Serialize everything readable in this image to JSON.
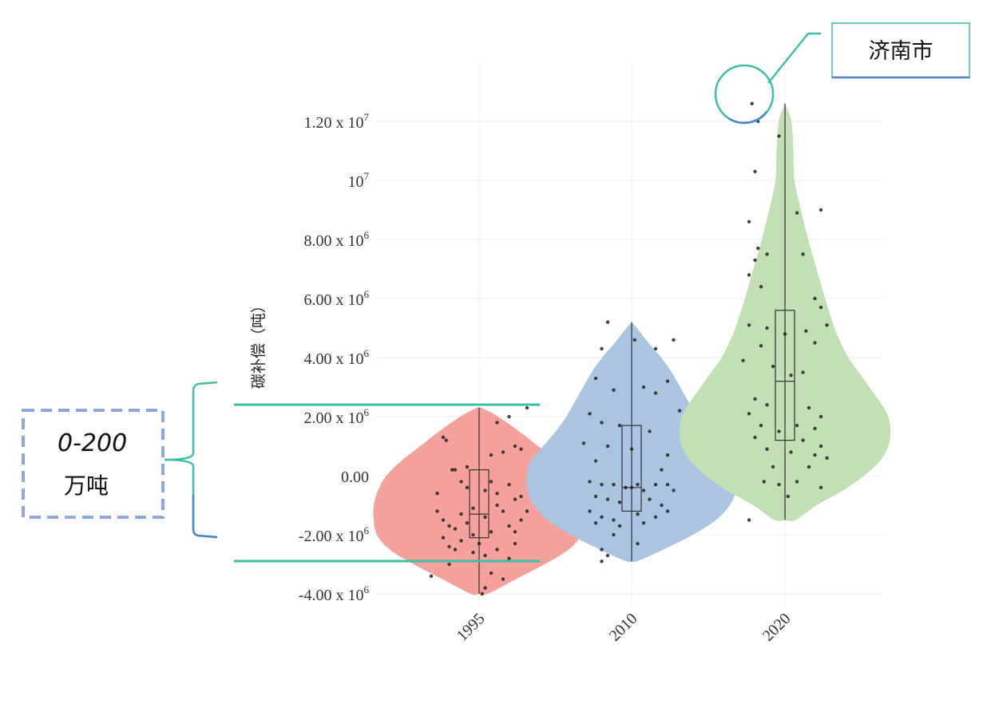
{
  "chart_data": {
    "type": "violin",
    "title": "",
    "xlabel": "",
    "ylabel": "碳补偿（吨）",
    "categories": [
      "1995",
      "2010",
      "2020"
    ],
    "ylim": [
      -4200000,
      13500000
    ],
    "yticks": [
      {
        "value": 12000000,
        "mantissa": "1.20 x 10",
        "exp": "7"
      },
      {
        "value": 10000000,
        "mantissa": "10",
        "exp": "7"
      },
      {
        "value": 8000000,
        "mantissa": "8.00 x 10",
        "exp": "6"
      },
      {
        "value": 6000000,
        "mantissa": "6.00 x 10",
        "exp": "6"
      },
      {
        "value": 4000000,
        "mantissa": "4.00 x 10",
        "exp": "6"
      },
      {
        "value": 2000000,
        "mantissa": "2.00 x 10",
        "exp": "6"
      },
      {
        "value": 0,
        "mantissa": "0.00",
        "exp": ""
      },
      {
        "value": -2000000,
        "mantissa": "-2.00 x 10",
        "exp": "6"
      },
      {
        "value": -4000000,
        "mantissa": "-4.00 x 10",
        "exp": "6"
      }
    ],
    "grid": true,
    "series": [
      {
        "category": "1995",
        "color": "#f4a29b",
        "box": {
          "q1": -2100000,
          "median": -1300000,
          "q3": 200000,
          "whisker_low": -4000000,
          "whisker_high": 2300000
        },
        "density": [
          [
            -4000000,
            0.08
          ],
          [
            -3500000,
            0.35
          ],
          [
            -3000000,
            0.62
          ],
          [
            -2500000,
            0.85
          ],
          [
            -2000000,
            0.97
          ],
          [
            -1500000,
            1.0
          ],
          [
            -1000000,
            1.0
          ],
          [
            -500000,
            0.96
          ],
          [
            0,
            0.88
          ],
          [
            500000,
            0.74
          ],
          [
            1000000,
            0.56
          ],
          [
            1500000,
            0.38
          ],
          [
            2000000,
            0.18
          ],
          [
            2300000,
            0.02
          ]
        ],
        "points": [
          [
            -0.6,
            1300000
          ],
          [
            -0.55,
            1200000
          ],
          [
            -0.45,
            200000
          ],
          [
            -0.4,
            200000
          ],
          [
            -0.2,
            300000
          ],
          [
            0.2,
            700000
          ],
          [
            0.4,
            800000
          ],
          [
            0.6,
            1000000
          ],
          [
            0.7,
            900000
          ],
          [
            0.5,
            2000000
          ],
          [
            0.8,
            2300000
          ],
          [
            0.3,
            1800000
          ],
          [
            -0.7,
            -1200000
          ],
          [
            -0.6,
            -1500000
          ],
          [
            -0.5,
            -1700000
          ],
          [
            -0.4,
            -1800000
          ],
          [
            -0.3,
            -1300000
          ],
          [
            -0.2,
            -1600000
          ],
          [
            -0.1,
            -2000000
          ],
          [
            0.1,
            -1400000
          ],
          [
            0.2,
            -1900000
          ],
          [
            0.3,
            -1000000
          ],
          [
            0.4,
            -1200000
          ],
          [
            0.5,
            -1700000
          ],
          [
            0.6,
            -1900000
          ],
          [
            0.7,
            -1500000
          ],
          [
            0.8,
            -1200000
          ],
          [
            -0.6,
            -2100000
          ],
          [
            -0.5,
            -2400000
          ],
          [
            -0.4,
            -2500000
          ],
          [
            -0.3,
            -2200000
          ],
          [
            -0.1,
            -2600000
          ],
          [
            0.0,
            -2300000
          ],
          [
            0.1,
            -2700000
          ],
          [
            0.3,
            -2500000
          ],
          [
            0.5,
            -2800000
          ],
          [
            0.6,
            -2300000
          ],
          [
            -0.8,
            -3400000
          ],
          [
            -0.5,
            -3000000
          ],
          [
            0.2,
            -3300000
          ],
          [
            0.05,
            -4000000
          ],
          [
            0.1,
            -3800000
          ],
          [
            0.4,
            -3500000
          ],
          [
            -0.3,
            -200000
          ],
          [
            -0.2,
            -400000
          ],
          [
            0.1,
            -500000
          ],
          [
            0.3,
            -600000
          ],
          [
            0.5,
            -300000
          ],
          [
            0.6,
            -800000
          ],
          [
            0.7,
            -700000
          ],
          [
            -0.7,
            -600000
          ],
          [
            0.2,
            -200000
          ],
          [
            -0.1,
            -1100000
          ]
        ]
      },
      {
        "category": "2010",
        "color": "#a9c5e0",
        "box": {
          "q1": -1200000,
          "median": -400000,
          "q3": 1700000,
          "whisker_low": -2900000,
          "whisker_high": 5200000
        },
        "density": [
          [
            -2900000,
            0.05
          ],
          [
            -2500000,
            0.3
          ],
          [
            -2000000,
            0.58
          ],
          [
            -1500000,
            0.8
          ],
          [
            -1000000,
            0.93
          ],
          [
            -500000,
            0.99
          ],
          [
            0,
            1.0
          ],
          [
            500000,
            0.96
          ],
          [
            1000000,
            0.84
          ],
          [
            1500000,
            0.72
          ],
          [
            2000000,
            0.62
          ],
          [
            2500000,
            0.54
          ],
          [
            3000000,
            0.46
          ],
          [
            3500000,
            0.38
          ],
          [
            4000000,
            0.28
          ],
          [
            4500000,
            0.16
          ],
          [
            5000000,
            0.05
          ],
          [
            5200000,
            0.0
          ]
        ],
        "points": [
          [
            -0.4,
            5200000
          ],
          [
            -0.5,
            4300000
          ],
          [
            0.05,
            4600000
          ],
          [
            0.4,
            4300000
          ],
          [
            0.7,
            4600000
          ],
          [
            -0.6,
            3300000
          ],
          [
            -0.3,
            2900000
          ],
          [
            0.2,
            3000000
          ],
          [
            0.4,
            2800000
          ],
          [
            0.6,
            3200000
          ],
          [
            0.8,
            2200000
          ],
          [
            -0.7,
            2100000
          ],
          [
            -0.5,
            1800000
          ],
          [
            -0.2,
            1700000
          ],
          [
            0.3,
            1500000
          ],
          [
            -0.8,
            1100000
          ],
          [
            -0.4,
            1000000
          ],
          [
            0.0,
            900000
          ],
          [
            0.6,
            700000
          ],
          [
            -0.6,
            500000
          ],
          [
            0.5,
            200000
          ],
          [
            -0.7,
            -200000
          ],
          [
            -0.5,
            -300000
          ],
          [
            -0.3,
            -300000
          ],
          [
            -0.1,
            -400000
          ],
          [
            0.0,
            -400000
          ],
          [
            0.1,
            -300000
          ],
          [
            0.2,
            -500000
          ],
          [
            0.4,
            -300000
          ],
          [
            0.6,
            -300000
          ],
          [
            0.7,
            -500000
          ],
          [
            -0.6,
            -700000
          ],
          [
            -0.4,
            -800000
          ],
          [
            -0.2,
            -900000
          ],
          [
            0.3,
            -800000
          ],
          [
            0.5,
            -1000000
          ],
          [
            -0.7,
            -1200000
          ],
          [
            -0.5,
            -1400000
          ],
          [
            -0.3,
            -1500000
          ],
          [
            0.1,
            -1300000
          ],
          [
            0.4,
            -1400000
          ],
          [
            0.6,
            -1200000
          ],
          [
            -0.6,
            -1600000
          ],
          [
            -0.2,
            -1700000
          ],
          [
            0.2,
            -1600000
          ],
          [
            -0.5,
            -2500000
          ],
          [
            -0.4,
            -2700000
          ],
          [
            -0.5,
            -2900000
          ],
          [
            0.1,
            -2300000
          ],
          [
            -0.3,
            -2000000
          ]
        ]
      },
      {
        "category": "2020",
        "color": "#c1e0b4",
        "box": {
          "q1": 1200000,
          "median": 3200000,
          "q3": 5600000,
          "whisker_low": -1500000,
          "whisker_high": 12600000
        },
        "density": [
          [
            -1500000,
            0.1
          ],
          [
            -1000000,
            0.3
          ],
          [
            -500000,
            0.55
          ],
          [
            0,
            0.75
          ],
          [
            500000,
            0.9
          ],
          [
            1000000,
            0.98
          ],
          [
            1500000,
            1.0
          ],
          [
            2000000,
            0.98
          ],
          [
            2500000,
            0.9
          ],
          [
            3000000,
            0.8
          ],
          [
            3500000,
            0.7
          ],
          [
            4000000,
            0.6
          ],
          [
            4500000,
            0.53
          ],
          [
            5000000,
            0.47
          ],
          [
            6000000,
            0.38
          ],
          [
            7000000,
            0.3
          ],
          [
            8000000,
            0.22
          ],
          [
            9000000,
            0.15
          ],
          [
            10000000,
            0.09
          ],
          [
            11000000,
            0.08
          ],
          [
            12000000,
            0.06
          ],
          [
            12600000,
            0.0
          ]
        ],
        "points": [
          [
            -0.55,
            12600000
          ],
          [
            -0.45,
            12000000
          ],
          [
            -0.1,
            11500000
          ],
          [
            -0.5,
            10300000
          ],
          [
            0.2,
            8900000
          ],
          [
            0.6,
            9000000
          ],
          [
            -0.6,
            8600000
          ],
          [
            -0.45,
            7700000
          ],
          [
            -0.3,
            7500000
          ],
          [
            0.3,
            7500000
          ],
          [
            -0.5,
            7300000
          ],
          [
            -0.6,
            6800000
          ],
          [
            -0.4,
            6400000
          ],
          [
            0.5,
            6000000
          ],
          [
            0.6,
            5700000
          ],
          [
            0.7,
            5100000
          ],
          [
            -0.6,
            5100000
          ],
          [
            -0.3,
            5000000
          ],
          [
            0.35,
            4900000
          ],
          [
            0.5,
            4500000
          ],
          [
            -0.4,
            4400000
          ],
          [
            0.0,
            4800000
          ],
          [
            -0.7,
            3900000
          ],
          [
            -0.2,
            3700000
          ],
          [
            0.1,
            3400000
          ],
          [
            0.3,
            3500000
          ],
          [
            -0.5,
            2600000
          ],
          [
            -0.3,
            2400000
          ],
          [
            0.4,
            2300000
          ],
          [
            0.6,
            2000000
          ],
          [
            -0.6,
            2100000
          ],
          [
            -0.4,
            1700000
          ],
          [
            -0.1,
            1500000
          ],
          [
            0.2,
            1700000
          ],
          [
            0.5,
            1600000
          ],
          [
            -0.5,
            1300000
          ],
          [
            0.3,
            1200000
          ],
          [
            0.6,
            1000000
          ],
          [
            -0.3,
            900000
          ],
          [
            0.1,
            800000
          ],
          [
            0.5,
            700000
          ],
          [
            0.7,
            600000
          ],
          [
            -0.2,
            300000
          ],
          [
            0.4,
            300000
          ],
          [
            -0.1,
            -300000
          ],
          [
            0.2,
            -200000
          ],
          [
            0.6,
            -400000
          ],
          [
            -0.35,
            -200000
          ],
          [
            0.05,
            -700000
          ],
          [
            -0.6,
            -1500000
          ]
        ]
      }
    ]
  },
  "annotations": {
    "callout_label": "济南市",
    "range_value": "0-200",
    "range_unit": "万吨"
  },
  "colors": {
    "teal": "#3dbfa7",
    "blue_dash": "#8fa8dc",
    "callout_border_top": "#5cc8b0",
    "callout_border_bottom": "#4a86c8"
  }
}
